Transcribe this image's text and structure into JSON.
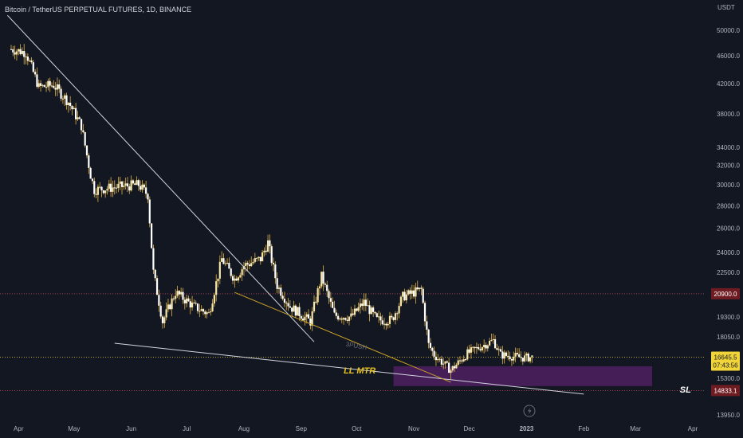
{
  "header": {
    "title": "Bitcoin / TetherUS PERPETUAL FUTURES, 1D, BINANCE"
  },
  "colors": {
    "background": "#131722",
    "candle_up": "#f5e6a8",
    "candle_down": "#ffffff",
    "wick": "#e0b34a",
    "trendline": "#d1d4dc",
    "pattern_line": "#c9a227",
    "zone": "#4b1f5e",
    "level_line": "#b84a5a",
    "price_label_red": "#6e1c22",
    "current_price_label": "#f0d43a"
  },
  "chart_data": {
    "type": "candlestick",
    "title": "Bitcoin / TetherUS PERPETUAL FUTURES, 1D, BINANCE",
    "currency": "USDT",
    "scale": "log",
    "ylim": [
      13600,
      54000
    ],
    "x_ticks": [
      "Apr",
      "May",
      "Jun",
      "Jul",
      "Aug",
      "Sep",
      "Oct",
      "Nov",
      "Dec",
      "2023",
      "Feb",
      "Mar",
      "Apr"
    ],
    "y_ticks": [
      50000.0,
      46000.0,
      42000.0,
      38000.0,
      34000.0,
      32000.0,
      30000.0,
      28000.0,
      26000.0,
      24000.0,
      22500.0,
      19300.0,
      18050.0,
      15300.0,
      13950.0
    ],
    "y_tick_labels": [
      "50000.0",
      "46000.0",
      "42000.0",
      "38000.0",
      "34000.0",
      "32000.0",
      "30000.0",
      "28000.0",
      "26000.0",
      "24000.0",
      "22500.0",
      "19300.0",
      "18050.0",
      "15300.0",
      "13950.0"
    ],
    "price_path": [
      [
        "2022-03-28",
        47000
      ],
      [
        "2022-04-05",
        46500
      ],
      [
        "2022-04-12",
        41500
      ],
      [
        "2022-04-20",
        41800
      ],
      [
        "2022-04-28",
        39500
      ],
      [
        "2022-05-05",
        36500
      ],
      [
        "2022-05-10",
        31000
      ],
      [
        "2022-05-12",
        29500
      ],
      [
        "2022-05-25",
        29800
      ],
      [
        "2022-06-05",
        30000
      ],
      [
        "2022-06-10",
        29000
      ],
      [
        "2022-06-13",
        22500
      ],
      [
        "2022-06-18",
        19000
      ],
      [
        "2022-06-25",
        21000
      ],
      [
        "2022-07-05",
        20000
      ],
      [
        "2022-07-13",
        19500
      ],
      [
        "2022-07-20",
        23500
      ],
      [
        "2022-07-27",
        22000
      ],
      [
        "2022-08-01",
        23000
      ],
      [
        "2022-08-10",
        23500
      ],
      [
        "2022-08-14",
        24800
      ],
      [
        "2022-08-19",
        21500
      ],
      [
        "2022-08-26",
        20000
      ],
      [
        "2022-09-06",
        19000
      ],
      [
        "2022-09-12",
        22200
      ],
      [
        "2022-09-19",
        19400
      ],
      [
        "2022-09-28",
        19300
      ],
      [
        "2022-10-05",
        20300
      ],
      [
        "2022-10-12",
        19100
      ],
      [
        "2022-10-20",
        19100
      ],
      [
        "2022-10-26",
        20700
      ],
      [
        "2022-11-05",
        21200
      ],
      [
        "2022-11-09",
        17500
      ],
      [
        "2022-11-12",
        16800
      ],
      [
        "2022-11-21",
        15800
      ],
      [
        "2022-11-30",
        16900
      ],
      [
        "2022-12-14",
        17800
      ],
      [
        "2022-12-18",
        16800
      ],
      [
        "2022-12-31",
        16600
      ],
      [
        "2023-01-04",
        16645.5
      ]
    ],
    "levels": [
      {
        "price": 20900.0,
        "label": "20900.0"
      },
      {
        "price": 14833.1,
        "label": "14833.1"
      }
    ],
    "current_price": {
      "price": 16645.5,
      "label": "16645.5",
      "countdown": "07:43:56"
    },
    "zone": {
      "from": "2022-10-21",
      "to": "2023-03-10",
      "low": 15000,
      "high": 16050
    },
    "trendlines": [
      {
        "from": [
          "2022-03-26",
          52500
        ],
        "to": [
          "2022-09-08",
          17700
        ]
      },
      {
        "from": [
          "2022-05-23",
          17600
        ],
        "to": [
          "2023-02-01",
          14700
        ]
      }
    ],
    "pattern_line": [
      [
        "2022-07-27",
        21000
      ],
      [
        "2022-11-21",
        15150
      ]
    ],
    "annotations": [
      {
        "text": "3PUSH",
        "at": [
          "2022-09-25",
          17400
        ]
      },
      {
        "text": "LL MTR",
        "at": [
          "2022-09-24",
          15600
        ]
      },
      {
        "text": "SL",
        "at": [
          "2023-03-25",
          14750
        ]
      }
    ]
  }
}
